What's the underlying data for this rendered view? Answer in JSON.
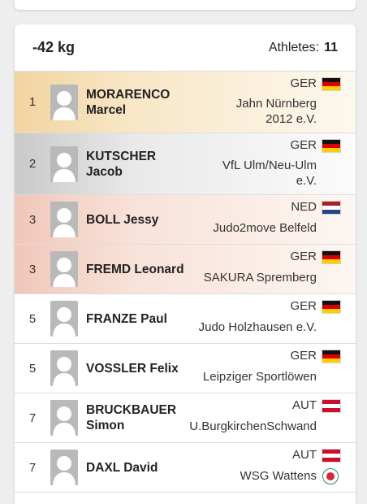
{
  "category": {
    "weight": "-42 kg",
    "athletes_label": "Athletes:",
    "athletes_count": "11"
  },
  "rows": [
    {
      "rank": "1",
      "name_lines": [
        "MORARENCO",
        "Marcel"
      ],
      "country": "GER",
      "flag": "ger",
      "club_lines": [
        "Jahn Nürnberg",
        "2012 e.V."
      ],
      "medal": "gold"
    },
    {
      "rank": "2",
      "name_lines": [
        "KUTSCHER",
        "Jacob"
      ],
      "country": "GER",
      "flag": "ger",
      "club_lines": [
        "VfL Ulm/Neu-Ulm",
        "e.V."
      ],
      "medal": "silver"
    },
    {
      "rank": "3",
      "name_lines": [
        "BOLL Jessy"
      ],
      "country": "NED",
      "flag": "ned",
      "club_lines": [
        "Judo2move Belfeld"
      ],
      "medal": "bronze"
    },
    {
      "rank": "3",
      "name_lines": [
        "FREMD Leonard"
      ],
      "country": "GER",
      "flag": "ger",
      "club_lines": [
        "SAKURA Spremberg"
      ],
      "medal": "bronze"
    },
    {
      "rank": "5",
      "name_lines": [
        "FRANZE Paul"
      ],
      "country": "GER",
      "flag": "ger",
      "club_lines": [
        "Judo Holzhausen e.V."
      ],
      "medal": "none"
    },
    {
      "rank": "5",
      "name_lines": [
        "VOSSLER Felix"
      ],
      "country": "GER",
      "flag": "ger",
      "club_lines": [
        "Leipziger Sportlöwen"
      ],
      "medal": "none"
    },
    {
      "rank": "7",
      "name_lines": [
        "BRUCKBAUER",
        "Simon"
      ],
      "country": "AUT",
      "flag": "aut",
      "club_lines": [
        "U.BurgkirchenSchwand"
      ],
      "medal": "none"
    },
    {
      "rank": "7",
      "name_lines": [
        "DAXL David"
      ],
      "country": "AUT",
      "flag": "aut",
      "club_lines": [
        "WSG Wattens"
      ],
      "medal": "none",
      "club_logo": "wsg-wattens-logo-icon"
    }
  ],
  "icons": {
    "avatar": "person-placeholder-icon"
  },
  "colors": {
    "gold": "#f2d4a0",
    "silver": "#c9c9c9",
    "bronze": "#f0c7b9"
  }
}
